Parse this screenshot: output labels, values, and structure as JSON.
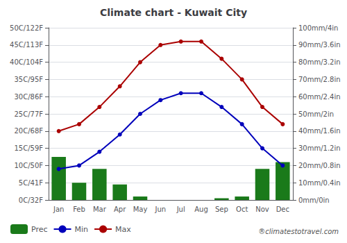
{
  "chart_data": {
    "type": "bar",
    "title": "Climate chart - Kuwait City",
    "categories": [
      "Jan",
      "Feb",
      "Mar",
      "Apr",
      "May",
      "Jun",
      "Jul",
      "Aug",
      "Sep",
      "Oct",
      "Nov",
      "Dec"
    ],
    "series": [
      {
        "name": "Prec",
        "type": "bar",
        "axis": "y2",
        "color": "#1a7a1a",
        "values": [
          25,
          10,
          18,
          9,
          2,
          0,
          0,
          0,
          1,
          2,
          18,
          22
        ]
      },
      {
        "name": "Min",
        "type": "line",
        "marker": "circle",
        "color": "#0000bb",
        "values": [
          9,
          10,
          14,
          19,
          25,
          29,
          31,
          31,
          27,
          22,
          15,
          10
        ]
      },
      {
        "name": "Max",
        "type": "line",
        "marker": "circle",
        "color": "#aa0000",
        "values": [
          20,
          22,
          27,
          33,
          40,
          45,
          46,
          46,
          41,
          35,
          27,
          22
        ]
      }
    ],
    "ylim": [
      0,
      50
    ],
    "yticks": [
      {
        "value": 0,
        "label": "0C/32F"
      },
      {
        "value": 5,
        "label": "5C/41F"
      },
      {
        "value": 10,
        "label": "10C/50F"
      },
      {
        "value": 15,
        "label": "15C/59F"
      },
      {
        "value": 20,
        "label": "20C/68F"
      },
      {
        "value": 25,
        "label": "25C/77F"
      },
      {
        "value": 30,
        "label": "30C/86F"
      },
      {
        "value": 35,
        "label": "35C/95F"
      },
      {
        "value": 40,
        "label": "40C/104F"
      },
      {
        "value": 45,
        "label": "45C/113F"
      },
      {
        "value": 50,
        "label": "50C/122F"
      }
    ],
    "y2lim": [
      0,
      100
    ],
    "y2ticks": [
      {
        "value": 0,
        "label": "0mm/0in"
      },
      {
        "value": 10,
        "label": "10mm/0.4in"
      },
      {
        "value": 20,
        "label": "20mm/0.8in"
      },
      {
        "value": 30,
        "label": "30mm/1.2in"
      },
      {
        "value": 40,
        "label": "40mm/1.6in"
      },
      {
        "value": 50,
        "label": "50mm/2in"
      },
      {
        "value": 60,
        "label": "60mm/2.4in"
      },
      {
        "value": 70,
        "label": "70mm/2.8in"
      },
      {
        "value": 80,
        "label": "80mm/3.2in"
      },
      {
        "value": 90,
        "label": "90mm/3.6in"
      },
      {
        "value": 100,
        "label": "100mm/4in"
      }
    ],
    "grid": true,
    "legend": "lower left",
    "annotations": [
      "®climatesto​travel.com"
    ]
  }
}
